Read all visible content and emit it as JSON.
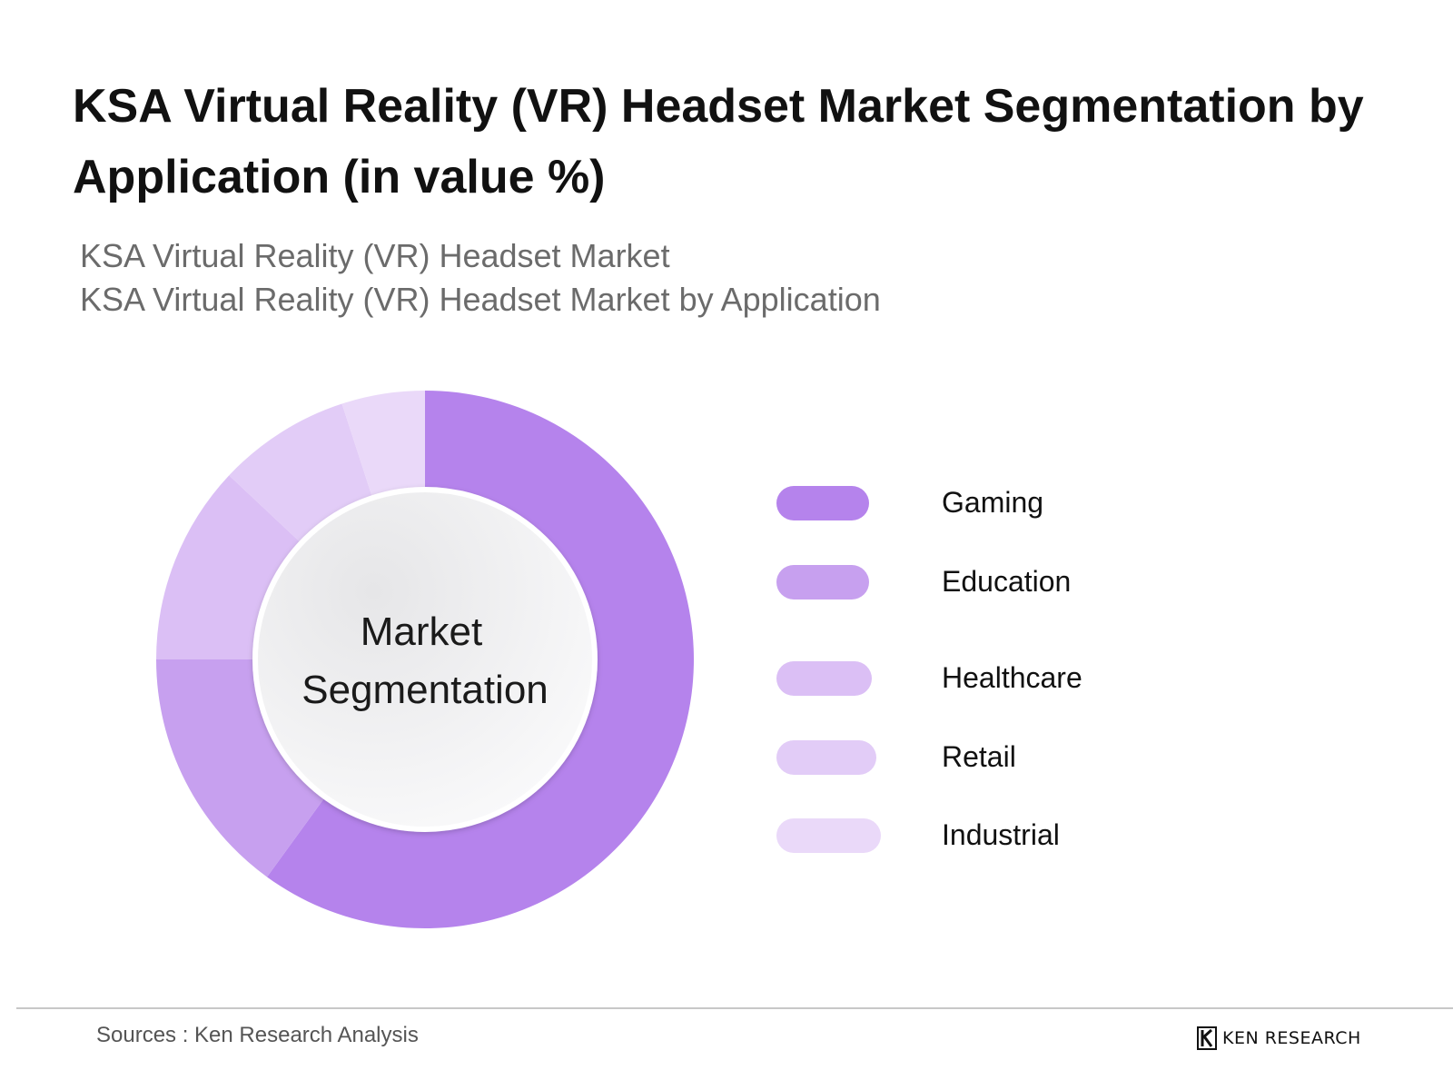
{
  "header": {
    "title": "KSA Virtual Reality (VR) Headset Market Segmentation by Application (in value %)",
    "subtitle_1": "KSA Virtual Reality (VR) Headset Market",
    "subtitle_2": "KSA Virtual Reality (VR) Headset Market by Application"
  },
  "chart_data": {
    "type": "pie",
    "variant": "donut",
    "center_label_line1": "Market",
    "center_label_line2": "Segmentation",
    "categories": [
      "Gaming",
      "Education",
      "Healthcare",
      "Retail",
      "Industrial"
    ],
    "values": [
      60,
      15,
      12,
      8,
      5
    ],
    "colors": [
      "#b583ec",
      "#c7a0ef",
      "#dbbff5",
      "#e2ccf7",
      "#ead9f9"
    ],
    "legend_position": "right"
  },
  "footer": {
    "source": "Sources : Ken Research Analysis",
    "brand": "KEN RESEARCH",
    "brand_icon": "ken-research-k-logo"
  }
}
